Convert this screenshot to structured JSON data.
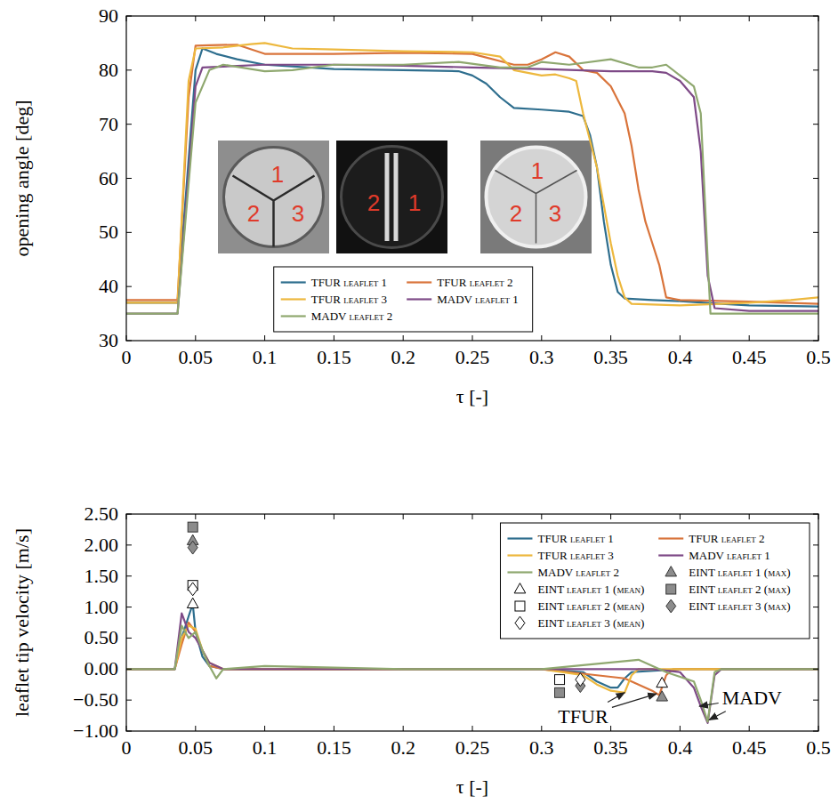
{
  "chart_data": [
    {
      "type": "line",
      "xlabel": "τ [-]",
      "ylabel": "opening angle [deg]",
      "xlim": [
        0,
        0.5
      ],
      "xticks": [
        0,
        0.05,
        0.1,
        0.15,
        0.2,
        0.25,
        0.3,
        0.35,
        0.4,
        0.45,
        0.5
      ],
      "ylim": [
        30,
        90
      ],
      "yticks": [
        30,
        40,
        50,
        60,
        70,
        80,
        90
      ],
      "grid": false,
      "legend": "lower center",
      "insets": [
        [
          "1",
          "2",
          "3"
        ],
        [
          "2",
          "1"
        ],
        [
          "1",
          "2",
          "3"
        ]
      ],
      "series": [
        {
          "name": "TFUR leaflet 1",
          "color": "#2e6e8e",
          "x": [
            0,
            0.037,
            0.05,
            0.055,
            0.065,
            0.08,
            0.1,
            0.15,
            0.2,
            0.24,
            0.25,
            0.26,
            0.27,
            0.28,
            0.3,
            0.32,
            0.33,
            0.335,
            0.34,
            0.345,
            0.35,
            0.355,
            0.36,
            0.38,
            0.4,
            0.43,
            0.45,
            0.5
          ],
          "values": [
            37,
            37,
            80,
            84,
            83,
            82,
            81,
            80.2,
            80,
            79.8,
            79,
            77.5,
            75,
            73,
            72.7,
            72.3,
            71.5,
            68,
            62,
            52,
            44,
            39,
            37.8,
            37.5,
            37.3,
            36.8,
            36.5,
            36.3
          ]
        },
        {
          "name": "TFUR leaflet 2",
          "color": "#d9743b",
          "x": [
            0,
            0.037,
            0.045,
            0.05,
            0.06,
            0.08,
            0.1,
            0.15,
            0.2,
            0.25,
            0.28,
            0.29,
            0.3,
            0.31,
            0.32,
            0.33,
            0.34,
            0.35,
            0.36,
            0.365,
            0.37,
            0.375,
            0.38,
            0.385,
            0.39,
            0.4,
            0.45,
            0.5
          ],
          "values": [
            37.5,
            37.5,
            75,
            84.5,
            84.6,
            84.7,
            83,
            83,
            83.2,
            83,
            81,
            81,
            82,
            83.3,
            82.5,
            80,
            79.5,
            77,
            72,
            66,
            58,
            52,
            48,
            44,
            38,
            37.5,
            37.2,
            36.8
          ]
        },
        {
          "name": "TFUR leaflet 3",
          "color": "#edb83e",
          "x": [
            0,
            0.037,
            0.045,
            0.05,
            0.07,
            0.09,
            0.1,
            0.12,
            0.15,
            0.2,
            0.25,
            0.27,
            0.28,
            0.3,
            0.31,
            0.32,
            0.325,
            0.33,
            0.34,
            0.345,
            0.35,
            0.355,
            0.36,
            0.365,
            0.4,
            0.45,
            0.48,
            0.5
          ],
          "values": [
            37,
            37,
            78,
            84,
            84.2,
            84.8,
            85,
            84,
            83.8,
            83.5,
            83.3,
            82.5,
            80,
            79,
            79.2,
            78.5,
            78,
            72,
            62,
            55,
            48,
            42,
            38,
            36.8,
            36.5,
            37,
            37.5,
            38
          ]
        },
        {
          "name": "MADV leaflet 1",
          "color": "#7e4a87",
          "x": [
            0,
            0.037,
            0.05,
            0.055,
            0.1,
            0.15,
            0.2,
            0.25,
            0.3,
            0.35,
            0.38,
            0.39,
            0.4,
            0.41,
            0.415,
            0.42,
            0.425,
            0.45,
            0.5
          ],
          "values": [
            35,
            35,
            77,
            80.5,
            81,
            81,
            80.8,
            80.5,
            80.2,
            79.8,
            79.8,
            79.5,
            78,
            75,
            65,
            42,
            36,
            35.5,
            35.5
          ]
        },
        {
          "name": "MADV leaflet 2",
          "color": "#8fa86f",
          "x": [
            0,
            0.037,
            0.05,
            0.06,
            0.07,
            0.1,
            0.12,
            0.15,
            0.2,
            0.24,
            0.27,
            0.29,
            0.3,
            0.32,
            0.35,
            0.37,
            0.38,
            0.39,
            0.4,
            0.41,
            0.415,
            0.42,
            0.422,
            0.5
          ],
          "values": [
            35,
            35,
            74,
            80,
            81,
            79.8,
            80,
            81,
            81,
            81.5,
            80.5,
            80.5,
            81.5,
            81,
            82,
            80.5,
            80.5,
            81,
            79,
            77,
            72,
            45,
            35,
            35
          ]
        }
      ]
    },
    {
      "type": "line",
      "xlabel": "τ [-]",
      "ylabel": "leaflet tip velocity [m/s]",
      "xlim": [
        0,
        0.5
      ],
      "xticks": [
        0,
        0.05,
        0.1,
        0.15,
        0.2,
        0.25,
        0.3,
        0.35,
        0.4,
        0.45,
        0.5
      ],
      "ylim": [
        -1,
        2.5
      ],
      "yticks": [
        {
          "value": -1,
          "label": "−1.00"
        },
        {
          "value": -0.5,
          "label": "−0.50"
        },
        {
          "value": 0,
          "label": "0.00"
        },
        {
          "value": 0.5,
          "label": "0.50"
        },
        {
          "value": 1,
          "label": "1.00"
        },
        {
          "value": 1.5,
          "label": "1.50"
        },
        {
          "value": 2,
          "label": "2.00"
        },
        {
          "value": 2.5,
          "label": "2.50"
        }
      ],
      "grid": false,
      "legend": "upper right",
      "annotations": [
        {
          "text": "TFUR",
          "x": 0.33,
          "y": -0.75,
          "arrows": [
            [
              0.36,
              -0.38
            ],
            [
              0.383,
              -0.4
            ]
          ]
        },
        {
          "text": "MADV",
          "x": 0.452,
          "y": -0.45,
          "arrows": [
            [
              0.414,
              -0.6
            ],
            [
              0.421,
              -0.82
            ]
          ]
        }
      ],
      "series": [
        {
          "name": "TFUR leaflet 1",
          "color": "#2e6e8e",
          "x": [
            0,
            0.035,
            0.04,
            0.045,
            0.048,
            0.05,
            0.055,
            0.06,
            0.07,
            0.3,
            0.33,
            0.34,
            0.35,
            0.355,
            0.36,
            0.365,
            0.4,
            0.5
          ],
          "values": [
            0,
            0,
            0.5,
            0.85,
            1.05,
            0.6,
            0.2,
            0.05,
            0,
            0,
            -0.05,
            -0.2,
            -0.3,
            -0.3,
            -0.15,
            -0.05,
            0,
            0
          ]
        },
        {
          "name": "TFUR leaflet 2",
          "color": "#d9743b",
          "x": [
            0,
            0.035,
            0.04,
            0.045,
            0.05,
            0.055,
            0.06,
            0.07,
            0.3,
            0.32,
            0.34,
            0.36,
            0.37,
            0.38,
            0.385,
            0.39,
            0.395,
            0.5
          ],
          "values": [
            0,
            0,
            0.4,
            0.75,
            0.6,
            0.3,
            0.05,
            0,
            0,
            -0.05,
            -0.1,
            -0.15,
            -0.25,
            -0.35,
            -0.42,
            -0.1,
            0,
            0
          ]
        },
        {
          "name": "TFUR leaflet 3",
          "color": "#edb83e",
          "x": [
            0,
            0.035,
            0.04,
            0.045,
            0.05,
            0.055,
            0.06,
            0.07,
            0.3,
            0.33,
            0.34,
            0.35,
            0.36,
            0.365,
            0.37,
            0.5
          ],
          "values": [
            0,
            0,
            0.5,
            0.7,
            0.65,
            0.3,
            0.1,
            0,
            0,
            -0.1,
            -0.25,
            -0.35,
            -0.38,
            -0.1,
            0,
            0
          ]
        },
        {
          "name": "MADV leaflet 1",
          "color": "#7e4a87",
          "x": [
            0,
            0.035,
            0.04,
            0.045,
            0.05,
            0.06,
            0.07,
            0.38,
            0.4,
            0.41,
            0.415,
            0.42,
            0.425,
            0.43,
            0.5
          ],
          "values": [
            0,
            0,
            0.9,
            0.6,
            0.5,
            0.1,
            0,
            0,
            -0.05,
            -0.3,
            -0.6,
            -0.87,
            -0.1,
            0,
            0
          ]
        },
        {
          "name": "MADV leaflet 2",
          "color": "#8fa86f",
          "x": [
            0,
            0.035,
            0.04,
            0.045,
            0.05,
            0.055,
            0.06,
            0.065,
            0.07,
            0.1,
            0.2,
            0.3,
            0.37,
            0.38,
            0.39,
            0.41,
            0.415,
            0.42,
            0.425,
            0.43,
            0.5
          ],
          "values": [
            0,
            0,
            0.7,
            0.5,
            0.6,
            0.3,
            0.05,
            -0.15,
            0,
            0.05,
            0,
            0,
            0.15,
            0.05,
            -0.05,
            -0.2,
            -0.5,
            -0.85,
            -0.05,
            0,
            0
          ]
        },
        {
          "name": "EINT leaflet 1 (max)",
          "type": "scatter",
          "marker": "triangle",
          "color": "#8c8c8c",
          "x": [
            0.048,
            0.387
          ],
          "values": [
            2.07,
            -0.45
          ]
        },
        {
          "name": "EINT leaflet 1 (mean)",
          "type": "scatter",
          "marker": "triangle-open",
          "color": "#000000",
          "x": [
            0.048,
            0.387
          ],
          "values": [
            1.05,
            -0.23
          ]
        },
        {
          "name": "EINT leaflet 2 (max)",
          "type": "scatter",
          "marker": "square",
          "color": "#8c8c8c",
          "x": [
            0.048,
            0.313
          ],
          "values": [
            2.29,
            -0.38
          ]
        },
        {
          "name": "EINT leaflet 2 (mean)",
          "type": "scatter",
          "marker": "square-open",
          "color": "#000000",
          "x": [
            0.048,
            0.313
          ],
          "values": [
            1.35,
            -0.17
          ]
        },
        {
          "name": "EINT leaflet 3 (max)",
          "type": "scatter",
          "marker": "diamond",
          "color": "#8c8c8c",
          "x": [
            0.048,
            0.328
          ],
          "values": [
            1.96,
            -0.27
          ]
        },
        {
          "name": "EINT leaflet 3 (mean)",
          "type": "scatter",
          "marker": "diamond-open",
          "color": "#000000",
          "x": [
            0.048,
            0.328
          ],
          "values": [
            1.29,
            -0.17
          ]
        }
      ]
    }
  ]
}
